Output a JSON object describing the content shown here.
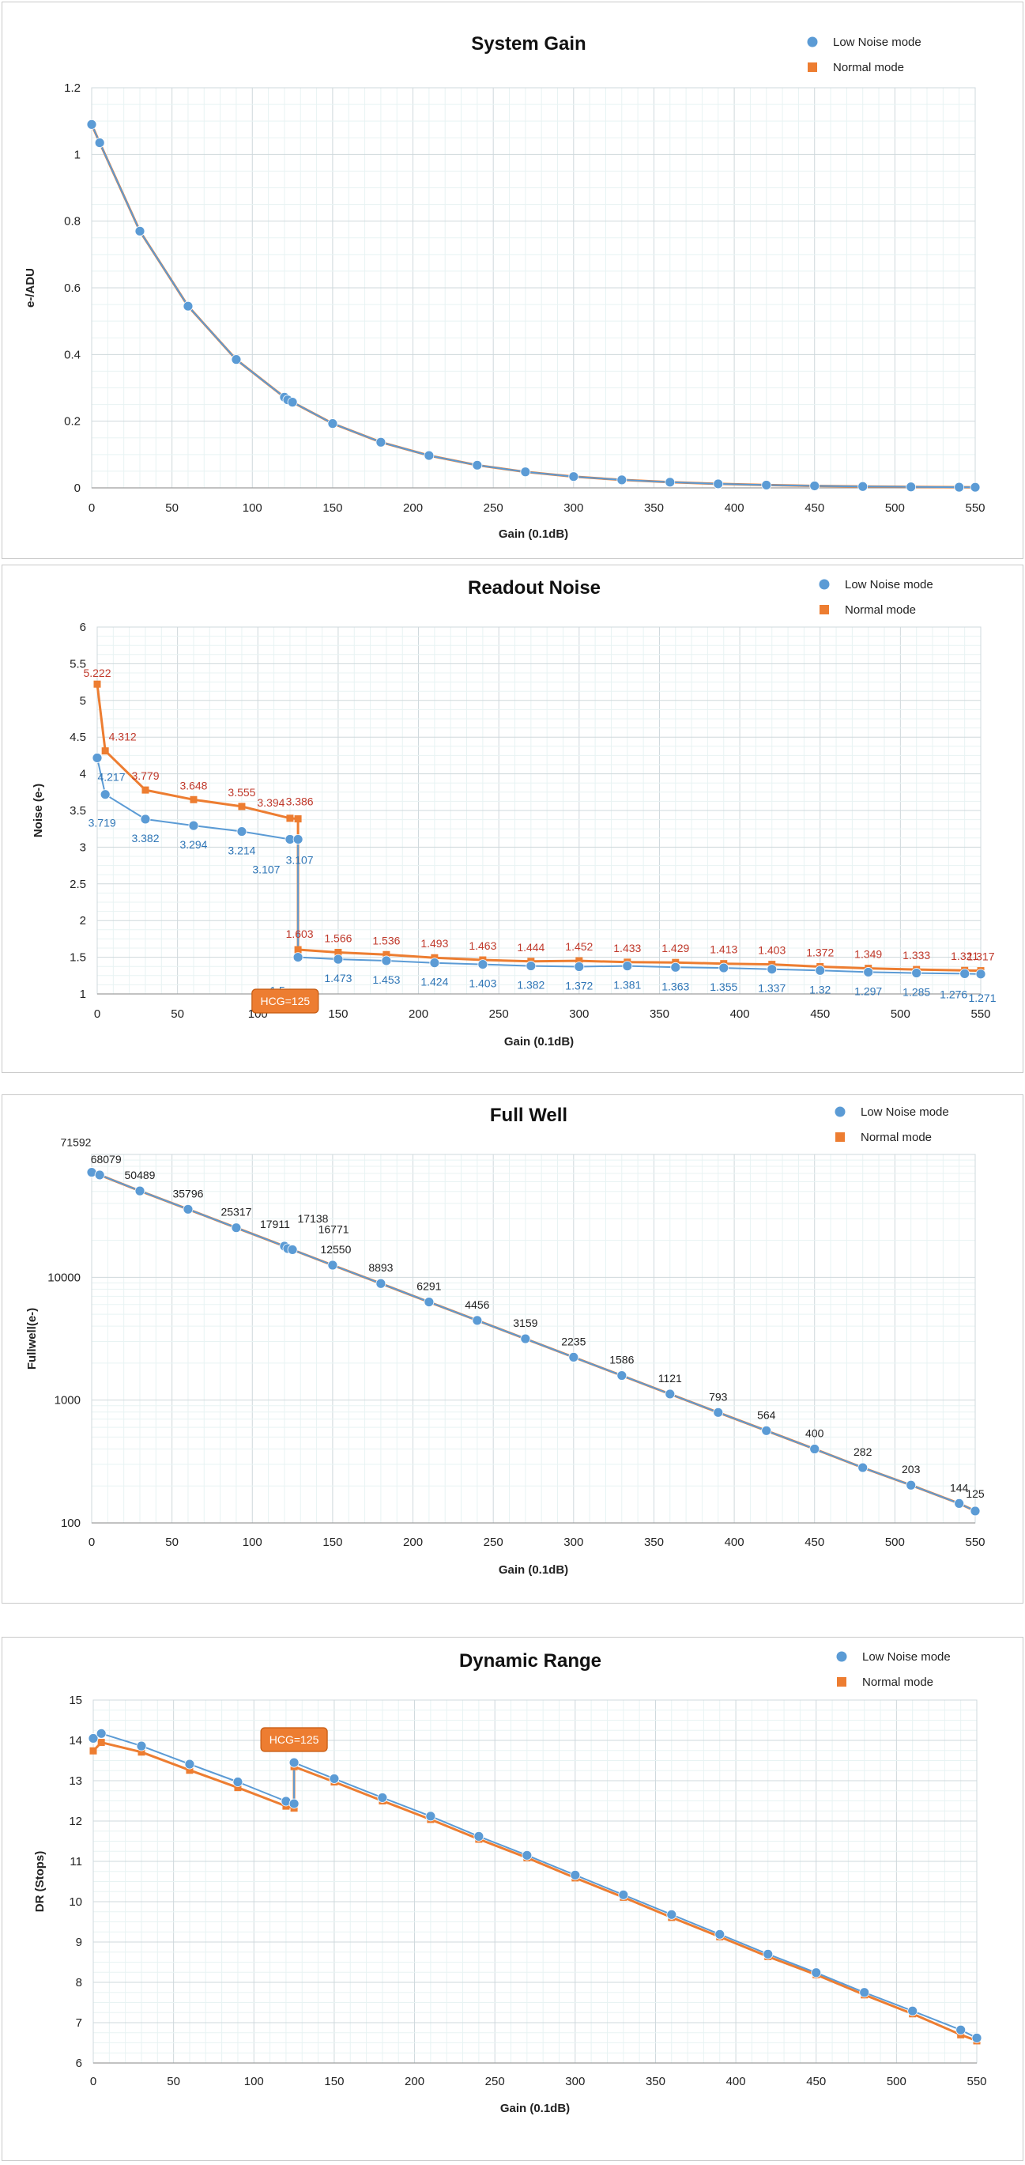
{
  "colors": {
    "low": "#5b9bd5",
    "normal": "#ed7d31",
    "grid_major": "#cfd8dc",
    "grid_minor": "#e8f3f3",
    "axis": "#9e9e9e",
    "label_red": "#c0392b",
    "label_blue": "#2e75b6",
    "text": "#222222"
  },
  "chart_data": [
    {
      "type": "line",
      "title": "System Gain",
      "xlabel": "Gain (0.1dB)",
      "ylabel": "e-/ADU",
      "xlim": [
        0,
        550
      ],
      "ylim": [
        0,
        1.2
      ],
      "yscale": "linear",
      "xticks": [
        "0",
        "50",
        "100",
        "150",
        "200",
        "250",
        "300",
        "350",
        "400",
        "450",
        "500",
        "550"
      ],
      "yticks": [
        "0",
        "0.2",
        "0.4",
        "0.6",
        "0.8",
        "1",
        "1.2"
      ],
      "grid": true,
      "legend_position": "top-right",
      "x": [
        0,
        5,
        30,
        60,
        90,
        120,
        122,
        125,
        150,
        180,
        210,
        240,
        270,
        300,
        330,
        360,
        390,
        420,
        450,
        480,
        510,
        540,
        550
      ],
      "series": [
        {
          "name": "Low Noise mode",
          "marker": "circle",
          "values": [
            1.09,
            1.035,
            0.77,
            0.545,
            0.385,
            0.272,
            0.264,
            0.257,
            0.193,
            0.137,
            0.097,
            0.068,
            0.048,
            0.034,
            0.024,
            0.017,
            0.012,
            0.0085,
            0.006,
            0.0042,
            0.003,
            0.0021,
            0.0019
          ],
          "labels": []
        },
        {
          "name": "Normal mode",
          "marker": "square",
          "values": [
            1.09,
            1.035,
            0.77,
            0.545,
            0.385,
            0.272,
            0.264,
            0.257,
            0.193,
            0.137,
            0.097,
            0.068,
            0.048,
            0.034,
            0.024,
            0.017,
            0.012,
            0.0085,
            0.006,
            0.0042,
            0.003,
            0.0021,
            0.0019
          ],
          "labels": []
        }
      ],
      "annotations": []
    },
    {
      "type": "line",
      "title": "Readout Noise",
      "xlabel": "Gain (0.1dB)",
      "ylabel": "Noise (e-)",
      "xlim": [
        0,
        550
      ],
      "ylim": [
        1,
        6
      ],
      "yscale": "linear",
      "xticks": [
        "0",
        "50",
        "100",
        "150",
        "200",
        "250",
        "300",
        "350",
        "400",
        "450",
        "500",
        "550"
      ],
      "yticks": [
        "1",
        "1.5",
        "2",
        "2.5",
        "3",
        "3.5",
        "4",
        "4.5",
        "5",
        "5.5",
        "6"
      ],
      "grid": true,
      "legend_position": "top-right",
      "series": [
        {
          "name": "Low Noise mode",
          "marker": "circle",
          "x": [
            0,
            5,
            30,
            60,
            90,
            120,
            125,
            125,
            150,
            180,
            210,
            240,
            270,
            300,
            330,
            360,
            390,
            420,
            450,
            480,
            510,
            540,
            550
          ],
          "values": [
            4.217,
            3.719,
            3.382,
            3.294,
            3.214,
            3.107,
            3.107,
            1.5,
            1.473,
            1.453,
            1.424,
            1.403,
            1.382,
            1.372,
            1.381,
            1.363,
            1.355,
            1.337,
            1.32,
            1.297,
            1.285,
            1.276,
            1.271
          ],
          "labels": [
            "4.217",
            "3.719",
            "3.382",
            "3.294",
            "3.214",
            "3.107",
            "3.107",
            "1.5",
            "1.473",
            "1.453",
            "1.424",
            "1.403",
            "1.382",
            "1.372",
            "1.381",
            "1.363",
            "1.355",
            "1.337",
            "1.32",
            "1.297",
            "1.285",
            "1.276",
            "1.271"
          ]
        },
        {
          "name": "Normal mode",
          "marker": "square",
          "x": [
            0,
            5,
            30,
            60,
            90,
            120,
            125,
            125,
            150,
            180,
            210,
            240,
            270,
            300,
            330,
            360,
            390,
            420,
            450,
            480,
            510,
            540,
            550
          ],
          "values": [
            5.222,
            4.312,
            3.779,
            3.648,
            3.555,
            3.394,
            3.386,
            1.603,
            1.566,
            1.536,
            1.493,
            1.463,
            1.444,
            1.452,
            1.433,
            1.429,
            1.413,
            1.403,
            1.372,
            1.349,
            1.333,
            1.321,
            1.317
          ],
          "labels": [
            "5.222",
            "4.312",
            "3.779",
            "3.648",
            "3.555",
            "3.394",
            "3.386",
            "1.603",
            "1.566",
            "1.536",
            "1.493",
            "1.463",
            "1.444",
            "1.452",
            "1.433",
            "1.429",
            "1.413",
            "1.403",
            "1.372",
            "1.349",
            "1.333",
            "1.321",
            "1.317"
          ]
        }
      ],
      "annotations": [
        {
          "text": "HCG=125",
          "x": 117,
          "y": 1.0
        }
      ]
    },
    {
      "type": "line",
      "title": "Full Well",
      "xlabel": "Gain (0.1dB)",
      "ylabel": "Fullwell(e-)",
      "xlim": [
        0,
        550
      ],
      "ylim": [
        100,
        100000
      ],
      "yscale": "log",
      "xticks": [
        "0",
        "50",
        "100",
        "150",
        "200",
        "250",
        "300",
        "350",
        "400",
        "450",
        "500",
        "550"
      ],
      "yticks": [
        "100",
        "1000",
        "10000"
      ],
      "grid": true,
      "legend_position": "top-right",
      "x": [
        0,
        5,
        30,
        60,
        90,
        120,
        122,
        125,
        150,
        180,
        210,
        240,
        270,
        300,
        330,
        360,
        390,
        420,
        450,
        480,
        510,
        540,
        550
      ],
      "series": [
        {
          "name": "Low Noise mode",
          "marker": "circle",
          "values": [
            71592,
            68079,
            50489,
            35796,
            25317,
            17911,
            17138,
            16771,
            12550,
            8893,
            6291,
            4456,
            3159,
            2235,
            1586,
            1121,
            793,
            564,
            400,
            282,
            203,
            144,
            125
          ],
          "labels": [
            "71592",
            "68079",
            "50489",
            "35796",
            "25317",
            "17911",
            "17138",
            "16771",
            "12550",
            "8893",
            "6291",
            "4456",
            "3159",
            "2235",
            "1586",
            "1121",
            "793",
            "564",
            "400",
            "282",
            "203",
            "144",
            "125"
          ]
        },
        {
          "name": "Normal mode",
          "marker": "square",
          "values": [
            71592,
            68079,
            50489,
            35796,
            25317,
            17911,
            17138,
            16771,
            12550,
            8893,
            6291,
            4456,
            3159,
            2235,
            1586,
            1121,
            793,
            564,
            400,
            282,
            203,
            144,
            125
          ],
          "labels": []
        }
      ],
      "annotations": []
    },
    {
      "type": "line",
      "title": "Dynamic Range",
      "xlabel": "Gain (0.1dB)",
      "ylabel": "DR (Stops)",
      "xlim": [
        0,
        550
      ],
      "ylim": [
        6,
        15
      ],
      "yscale": "linear",
      "xticks": [
        "0",
        "50",
        "100",
        "150",
        "200",
        "250",
        "300",
        "350",
        "400",
        "450",
        "500",
        "550"
      ],
      "yticks": [
        "6",
        "7",
        "8",
        "9",
        "10",
        "11",
        "12",
        "13",
        "14",
        "15"
      ],
      "grid": true,
      "legend_position": "top-right",
      "series": [
        {
          "name": "Low Noise mode",
          "marker": "circle",
          "x": [
            0,
            5,
            30,
            60,
            90,
            120,
            125,
            125,
            150,
            180,
            210,
            240,
            270,
            300,
            330,
            360,
            390,
            420,
            450,
            480,
            510,
            540,
            550
          ],
          "values": [
            14.05,
            14.17,
            13.86,
            13.41,
            12.97,
            12.49,
            12.43,
            13.45,
            13.05,
            12.58,
            12.12,
            11.62,
            11.15,
            10.66,
            10.17,
            9.68,
            9.19,
            8.7,
            8.24,
            7.75,
            7.29,
            6.82,
            6.62
          ],
          "labels": []
        },
        {
          "name": "Normal mode",
          "marker": "square",
          "x": [
            0,
            5,
            30,
            60,
            90,
            120,
            125,
            125,
            150,
            180,
            210,
            240,
            270,
            300,
            330,
            360,
            390,
            420,
            450,
            480,
            510,
            540,
            550
          ],
          "values": [
            13.74,
            13.95,
            13.71,
            13.26,
            12.83,
            12.37,
            12.32,
            13.35,
            12.97,
            12.5,
            12.04,
            11.55,
            11.09,
            10.59,
            10.11,
            9.61,
            9.13,
            8.64,
            8.19,
            7.69,
            7.22,
            6.7,
            6.55
          ],
          "labels": []
        }
      ],
      "annotations": [
        {
          "text": "HCG=125",
          "x": 125,
          "y": 14.0
        }
      ]
    }
  ]
}
